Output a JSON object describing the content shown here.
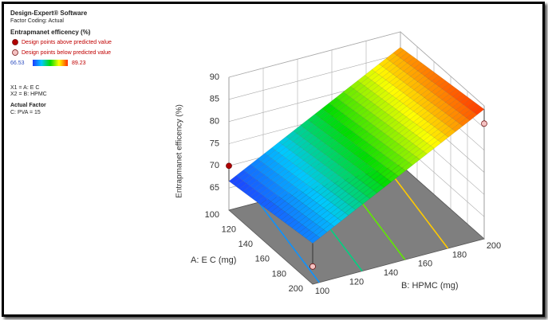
{
  "chart_data": {
    "type": "surface3d",
    "software": "Design-Expert® Software",
    "coding": "Factor Coding: Actual",
    "response": "Entrapmanet efficency (%)",
    "color_range": [
      66.53,
      89.23
    ],
    "factors": [
      "X1 = A: E C",
      "X2 = B: HPMC"
    ],
    "actual_factor_title": "Actual Factor",
    "actual_factor": "C: PVA = 15",
    "zlabel": "Entrapmanet efficency (%)",
    "x1label": "A: E C (mg)",
    "x2label": "B: HPMC (mg)",
    "x1lim": [
      100,
      200
    ],
    "x1ticks": [
      100,
      120,
      140,
      160,
      180,
      200
    ],
    "x2lim": [
      100,
      200
    ],
    "x2ticks": [
      100,
      120,
      140,
      160,
      180,
      200
    ],
    "zlim": [
      60,
      90
    ],
    "zticks": [
      65,
      70,
      75,
      80,
      85,
      90
    ],
    "surface": {
      "x1": [
        100,
        200
      ],
      "x2": [
        100,
        200
      ],
      "z": [
        [
          66.53,
          86.53
        ],
        [
          69.23,
          89.23
        ]
      ]
    },
    "design_points": [
      {
        "name": "Design points above predicted value",
        "color": "#b00000",
        "points": [
          {
            "x1": 100,
            "x2": 100,
            "z": 70
          }
        ]
      },
      {
        "name": "Design points below predicted value",
        "color": "#f4c2c2",
        "points": [
          {
            "x1": 200,
            "x2": 100,
            "z": 64
          },
          {
            "x1": 200,
            "x2": 200,
            "z": 86
          }
        ]
      }
    ]
  }
}
